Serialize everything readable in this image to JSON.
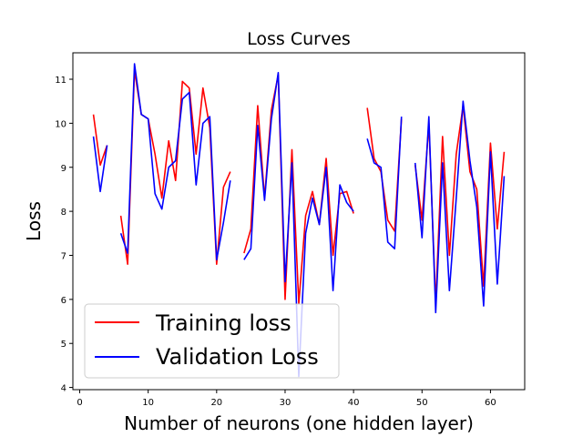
{
  "chart_data": {
    "type": "line",
    "title": "Loss Curves",
    "xlabel": "Number of neurons (one hidden layer)",
    "ylabel": "Loss",
    "xlim": [
      -1.0,
      65.0
    ],
    "ylim": [
      3.95,
      11.6
    ],
    "xticks": [
      0,
      10,
      20,
      30,
      40,
      50,
      60
    ],
    "yticks": [
      4,
      5,
      6,
      7,
      8,
      9,
      10,
      11
    ],
    "legend_position": "lower-left",
    "grid": false,
    "series": [
      {
        "name": "Training loss",
        "color": "#ff0000",
        "x": [
          2,
          3,
          4,
          5,
          6,
          7,
          8,
          9,
          10,
          11,
          12,
          13,
          14,
          15,
          16,
          17,
          18,
          19,
          20,
          21,
          22,
          23,
          24,
          25,
          26,
          27,
          28,
          29,
          30,
          31,
          32,
          33,
          34,
          35,
          36,
          37,
          38,
          39,
          40,
          41,
          42,
          43,
          44,
          45,
          46,
          47,
          48,
          49,
          50,
          51,
          52,
          53,
          54,
          55,
          56,
          57,
          58,
          59,
          60,
          61,
          62
        ],
        "y": [
          10.2,
          9.05,
          9.5,
          null,
          7.9,
          6.8,
          11.2,
          10.2,
          10.1,
          9.3,
          8.3,
          9.6,
          8.7,
          10.95,
          10.8,
          9.3,
          10.8,
          9.9,
          6.8,
          8.55,
          8.9,
          null,
          7.05,
          7.6,
          10.4,
          8.3,
          10.3,
          11.1,
          6.0,
          9.4,
          5.9,
          7.9,
          8.45,
          7.7,
          9.2,
          7.0,
          8.4,
          8.45,
          7.95,
          null,
          10.35,
          9.2,
          8.9,
          7.8,
          7.55,
          10.1,
          null,
          9.05,
          7.8,
          10.0,
          5.9,
          9.7,
          7.0,
          9.3,
          10.4,
          8.9,
          8.5,
          6.3,
          9.55,
          7.6,
          9.35
        ]
      },
      {
        "name": "Validation Loss",
        "color": "#0000ff",
        "x": [
          2,
          3,
          4,
          5,
          6,
          7,
          8,
          9,
          10,
          11,
          12,
          13,
          14,
          15,
          16,
          17,
          18,
          19,
          20,
          21,
          22,
          23,
          24,
          25,
          26,
          27,
          28,
          29,
          30,
          31,
          32,
          33,
          34,
          35,
          36,
          37,
          38,
          39,
          40,
          41,
          42,
          43,
          44,
          45,
          46,
          47,
          48,
          49,
          50,
          51,
          52,
          53,
          54,
          55,
          56,
          57,
          58,
          59,
          60,
          61,
          62
        ],
        "y": [
          9.7,
          8.45,
          9.5,
          null,
          7.5,
          7.05,
          11.35,
          10.2,
          10.1,
          8.4,
          8.05,
          9.0,
          9.15,
          10.55,
          10.7,
          8.6,
          10.0,
          10.15,
          6.9,
          7.75,
          8.7,
          null,
          6.9,
          7.15,
          9.95,
          8.25,
          10.1,
          11.15,
          6.4,
          9.1,
          4.25,
          7.5,
          8.3,
          7.7,
          9.0,
          6.2,
          8.6,
          8.2,
          8.0,
          null,
          9.65,
          9.1,
          9.0,
          7.3,
          7.15,
          10.15,
          null,
          9.1,
          7.4,
          10.15,
          5.7,
          9.1,
          6.2,
          8.3,
          10.5,
          9.15,
          8.1,
          5.85,
          9.35,
          6.35,
          8.8
        ]
      }
    ]
  }
}
